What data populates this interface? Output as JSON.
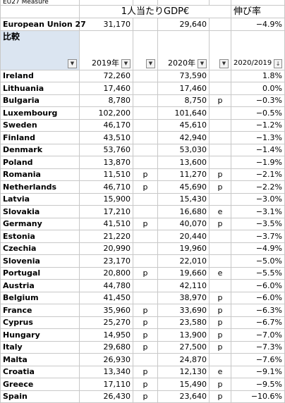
{
  "sheet": {
    "cut_label": "EU27 Measure",
    "title": "1人当たりGDP€",
    "growth_title": "伸び率",
    "eu_row": {
      "country": "European Union 27",
      "v2019": "31,170",
      "f2019": "",
      "v2020": "29,640",
      "f2020": "",
      "growth": "−4.9%"
    },
    "compare_label": "比較",
    "year_2019": "2019年",
    "year_2020": "2020年",
    "growth_header": "2020/2019",
    "rows": [
      {
        "country": "Ireland",
        "v2019": "72,260",
        "f2019": "",
        "v2020": "73,590",
        "f2020": "",
        "growth": "1.8%"
      },
      {
        "country": "Lithuania",
        "v2019": "17,460",
        "f2019": "",
        "v2020": "17,460",
        "f2020": "",
        "growth": "0.0%"
      },
      {
        "country": "Bulgaria",
        "v2019": "8,780",
        "f2019": "",
        "v2020": "8,750",
        "f2020": "p",
        "growth": "−0.3%"
      },
      {
        "country": "Luxembourg",
        "v2019": "102,200",
        "f2019": "",
        "v2020": "101,640",
        "f2020": "",
        "growth": "−0.5%"
      },
      {
        "country": "Sweden",
        "v2019": "46,170",
        "f2019": "",
        "v2020": "45,610",
        "f2020": "",
        "growth": "−1.2%"
      },
      {
        "country": "Finland",
        "v2019": "43,510",
        "f2019": "",
        "v2020": "42,940",
        "f2020": "",
        "growth": "−1.3%"
      },
      {
        "country": "Denmark",
        "v2019": "53,760",
        "f2019": "",
        "v2020": "53,030",
        "f2020": "",
        "growth": "−1.4%"
      },
      {
        "country": "Poland",
        "v2019": "13,870",
        "f2019": "",
        "v2020": "13,600",
        "f2020": "",
        "growth": "−1.9%"
      },
      {
        "country": "Romania",
        "v2019": "11,510",
        "f2019": "p",
        "v2020": "11,270",
        "f2020": "p",
        "growth": "−2.1%"
      },
      {
        "country": "Netherlands",
        "v2019": "46,710",
        "f2019": "p",
        "v2020": "45,690",
        "f2020": "p",
        "growth": "−2.2%"
      },
      {
        "country": "Latvia",
        "v2019": "15,900",
        "f2019": "",
        "v2020": "15,430",
        "f2020": "",
        "growth": "−3.0%"
      },
      {
        "country": "Slovakia",
        "v2019": "17,210",
        "f2019": "",
        "v2020": "16,680",
        "f2020": "e",
        "growth": "−3.1%"
      },
      {
        "country": "Germany",
        "v2019": "41,510",
        "f2019": "p",
        "v2020": "40,070",
        "f2020": "p",
        "growth": "−3.5%"
      },
      {
        "country": "Estonia",
        "v2019": "21,220",
        "f2019": "",
        "v2020": "20,440",
        "f2020": "",
        "growth": "−3.7%"
      },
      {
        "country": "Czechia",
        "v2019": "20,990",
        "f2019": "",
        "v2020": "19,960",
        "f2020": "",
        "growth": "−4.9%"
      },
      {
        "country": "Slovenia",
        "v2019": "23,170",
        "f2019": "",
        "v2020": "22,010",
        "f2020": "",
        "growth": "−5.0%"
      },
      {
        "country": "Portugal",
        "v2019": "20,800",
        "f2019": "p",
        "v2020": "19,660",
        "f2020": "e",
        "growth": "−5.5%"
      },
      {
        "country": "Austria",
        "v2019": "44,780",
        "f2019": "",
        "v2020": "42,110",
        "f2020": "",
        "growth": "−6.0%"
      },
      {
        "country": "Belgium",
        "v2019": "41,450",
        "f2019": "",
        "v2020": "38,970",
        "f2020": "p",
        "growth": "−6.0%"
      },
      {
        "country": "France",
        "v2019": "35,960",
        "f2019": "p",
        "v2020": "33,690",
        "f2020": "p",
        "growth": "−6.3%"
      },
      {
        "country": "Cyprus",
        "v2019": "25,270",
        "f2019": "p",
        "v2020": "23,580",
        "f2020": "p",
        "growth": "−6.7%"
      },
      {
        "country": "Hungary",
        "v2019": "14,950",
        "f2019": "p",
        "v2020": "13,900",
        "f2020": "p",
        "growth": "−7.0%"
      },
      {
        "country": "Italy",
        "v2019": "29,680",
        "f2019": "p",
        "v2020": "27,500",
        "f2020": "p",
        "growth": "−7.3%"
      },
      {
        "country": "Malta",
        "v2019": "26,930",
        "f2019": "",
        "v2020": "24,870",
        "f2020": "",
        "growth": "−7.6%"
      },
      {
        "country": "Croatia",
        "v2019": "13,340",
        "f2019": "p",
        "v2020": "12,130",
        "f2020": "e",
        "growth": "−9.1%"
      },
      {
        "country": "Greece",
        "v2019": "17,110",
        "f2019": "p",
        "v2020": "15,490",
        "f2020": "p",
        "growth": "−9.5%"
      },
      {
        "country": "Spain",
        "v2019": "26,430",
        "f2019": "p",
        "v2020": "23,640",
        "f2020": "p",
        "growth": "−10.6%"
      }
    ],
    "filter_icon": "dropdown-arrow",
    "sort_icon": "sort-desc-arrow",
    "selected_color": "#dbe5f1"
  }
}
